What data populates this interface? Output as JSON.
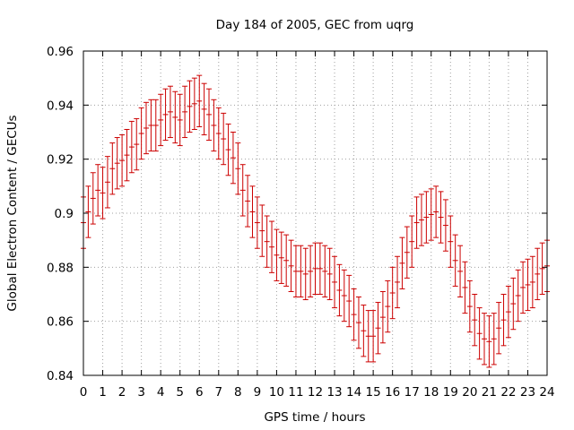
{
  "chart_data": {
    "type": "line",
    "title": "Day 184 of 2005, GEC from uqrg",
    "xlabel": "GPS time / hours",
    "ylabel": "Global Electron Content / GECUs",
    "xlim": [
      0,
      24
    ],
    "ylim": [
      0.84,
      0.96
    ],
    "x_ticks": [
      "0",
      "1",
      "2",
      "3",
      "4",
      "5",
      "6",
      "7",
      "8",
      "9",
      "10",
      "11",
      "12",
      "13",
      "14",
      "15",
      "16",
      "17",
      "18",
      "19",
      "20",
      "21",
      "22",
      "23",
      "24"
    ],
    "y_ticks": [
      "0.84",
      "0.86",
      "0.88",
      "0.9",
      "0.92",
      "0.94",
      "0.96"
    ],
    "grid": true,
    "error_bar_half_width": 0.0095,
    "series": [
      {
        "color": "#cc0000",
        "x": [
          0,
          0.25,
          0.5,
          0.75,
          1,
          1.25,
          1.5,
          1.75,
          2,
          2.25,
          2.5,
          2.75,
          3,
          3.25,
          3.5,
          3.75,
          4,
          4.25,
          4.5,
          4.75,
          5,
          5.25,
          5.5,
          5.75,
          6,
          6.25,
          6.5,
          6.75,
          7,
          7.25,
          7.5,
          7.75,
          8,
          8.25,
          8.5,
          8.75,
          9,
          9.25,
          9.5,
          9.75,
          10,
          10.25,
          10.5,
          10.75,
          11,
          11.25,
          11.5,
          11.75,
          12,
          12.25,
          12.5,
          12.75,
          13,
          13.25,
          13.5,
          13.75,
          14,
          14.25,
          14.5,
          14.75,
          15,
          15.25,
          15.5,
          15.75,
          16,
          16.25,
          16.5,
          16.75,
          17,
          17.25,
          17.5,
          17.75,
          18,
          18.25,
          18.5,
          18.75,
          19,
          19.25,
          19.5,
          19.75,
          20,
          20.25,
          20.5,
          20.75,
          21,
          21.25,
          21.5,
          21.75,
          22,
          22.25,
          22.5,
          22.75,
          23,
          23.25,
          23.5,
          23.75,
          24
        ],
        "y": [
          0.8965,
          0.9005,
          0.9055,
          0.9085,
          0.9075,
          0.9115,
          0.9165,
          0.9185,
          0.9195,
          0.9215,
          0.9245,
          0.9255,
          0.9295,
          0.9315,
          0.9325,
          0.9325,
          0.9345,
          0.9365,
          0.9375,
          0.9355,
          0.9345,
          0.9375,
          0.9395,
          0.9405,
          0.9415,
          0.9385,
          0.9365,
          0.9325,
          0.9295,
          0.9275,
          0.9235,
          0.9205,
          0.9165,
          0.9085,
          0.9045,
          0.9005,
          0.8965,
          0.8935,
          0.8895,
          0.8875,
          0.8845,
          0.8835,
          0.8825,
          0.8805,
          0.8785,
          0.8785,
          0.8775,
          0.8785,
          0.8795,
          0.8795,
          0.8785,
          0.8775,
          0.8745,
          0.8715,
          0.8695,
          0.8675,
          0.8625,
          0.8595,
          0.8565,
          0.8545,
          0.8545,
          0.8575,
          0.8615,
          0.8655,
          0.8705,
          0.8745,
          0.8815,
          0.8855,
          0.8895,
          0.8965,
          0.8975,
          0.8985,
          0.8995,
          0.9005,
          0.8985,
          0.8955,
          0.8895,
          0.8825,
          0.8785,
          0.8725,
          0.8655,
          0.8605,
          0.8555,
          0.8535,
          0.8525,
          0.8535,
          0.8575,
          0.8605,
          0.8635,
          0.8665,
          0.8695,
          0.8725,
          0.8735,
          0.8745,
          0.8775,
          0.8795,
          0.8805
        ]
      }
    ]
  }
}
